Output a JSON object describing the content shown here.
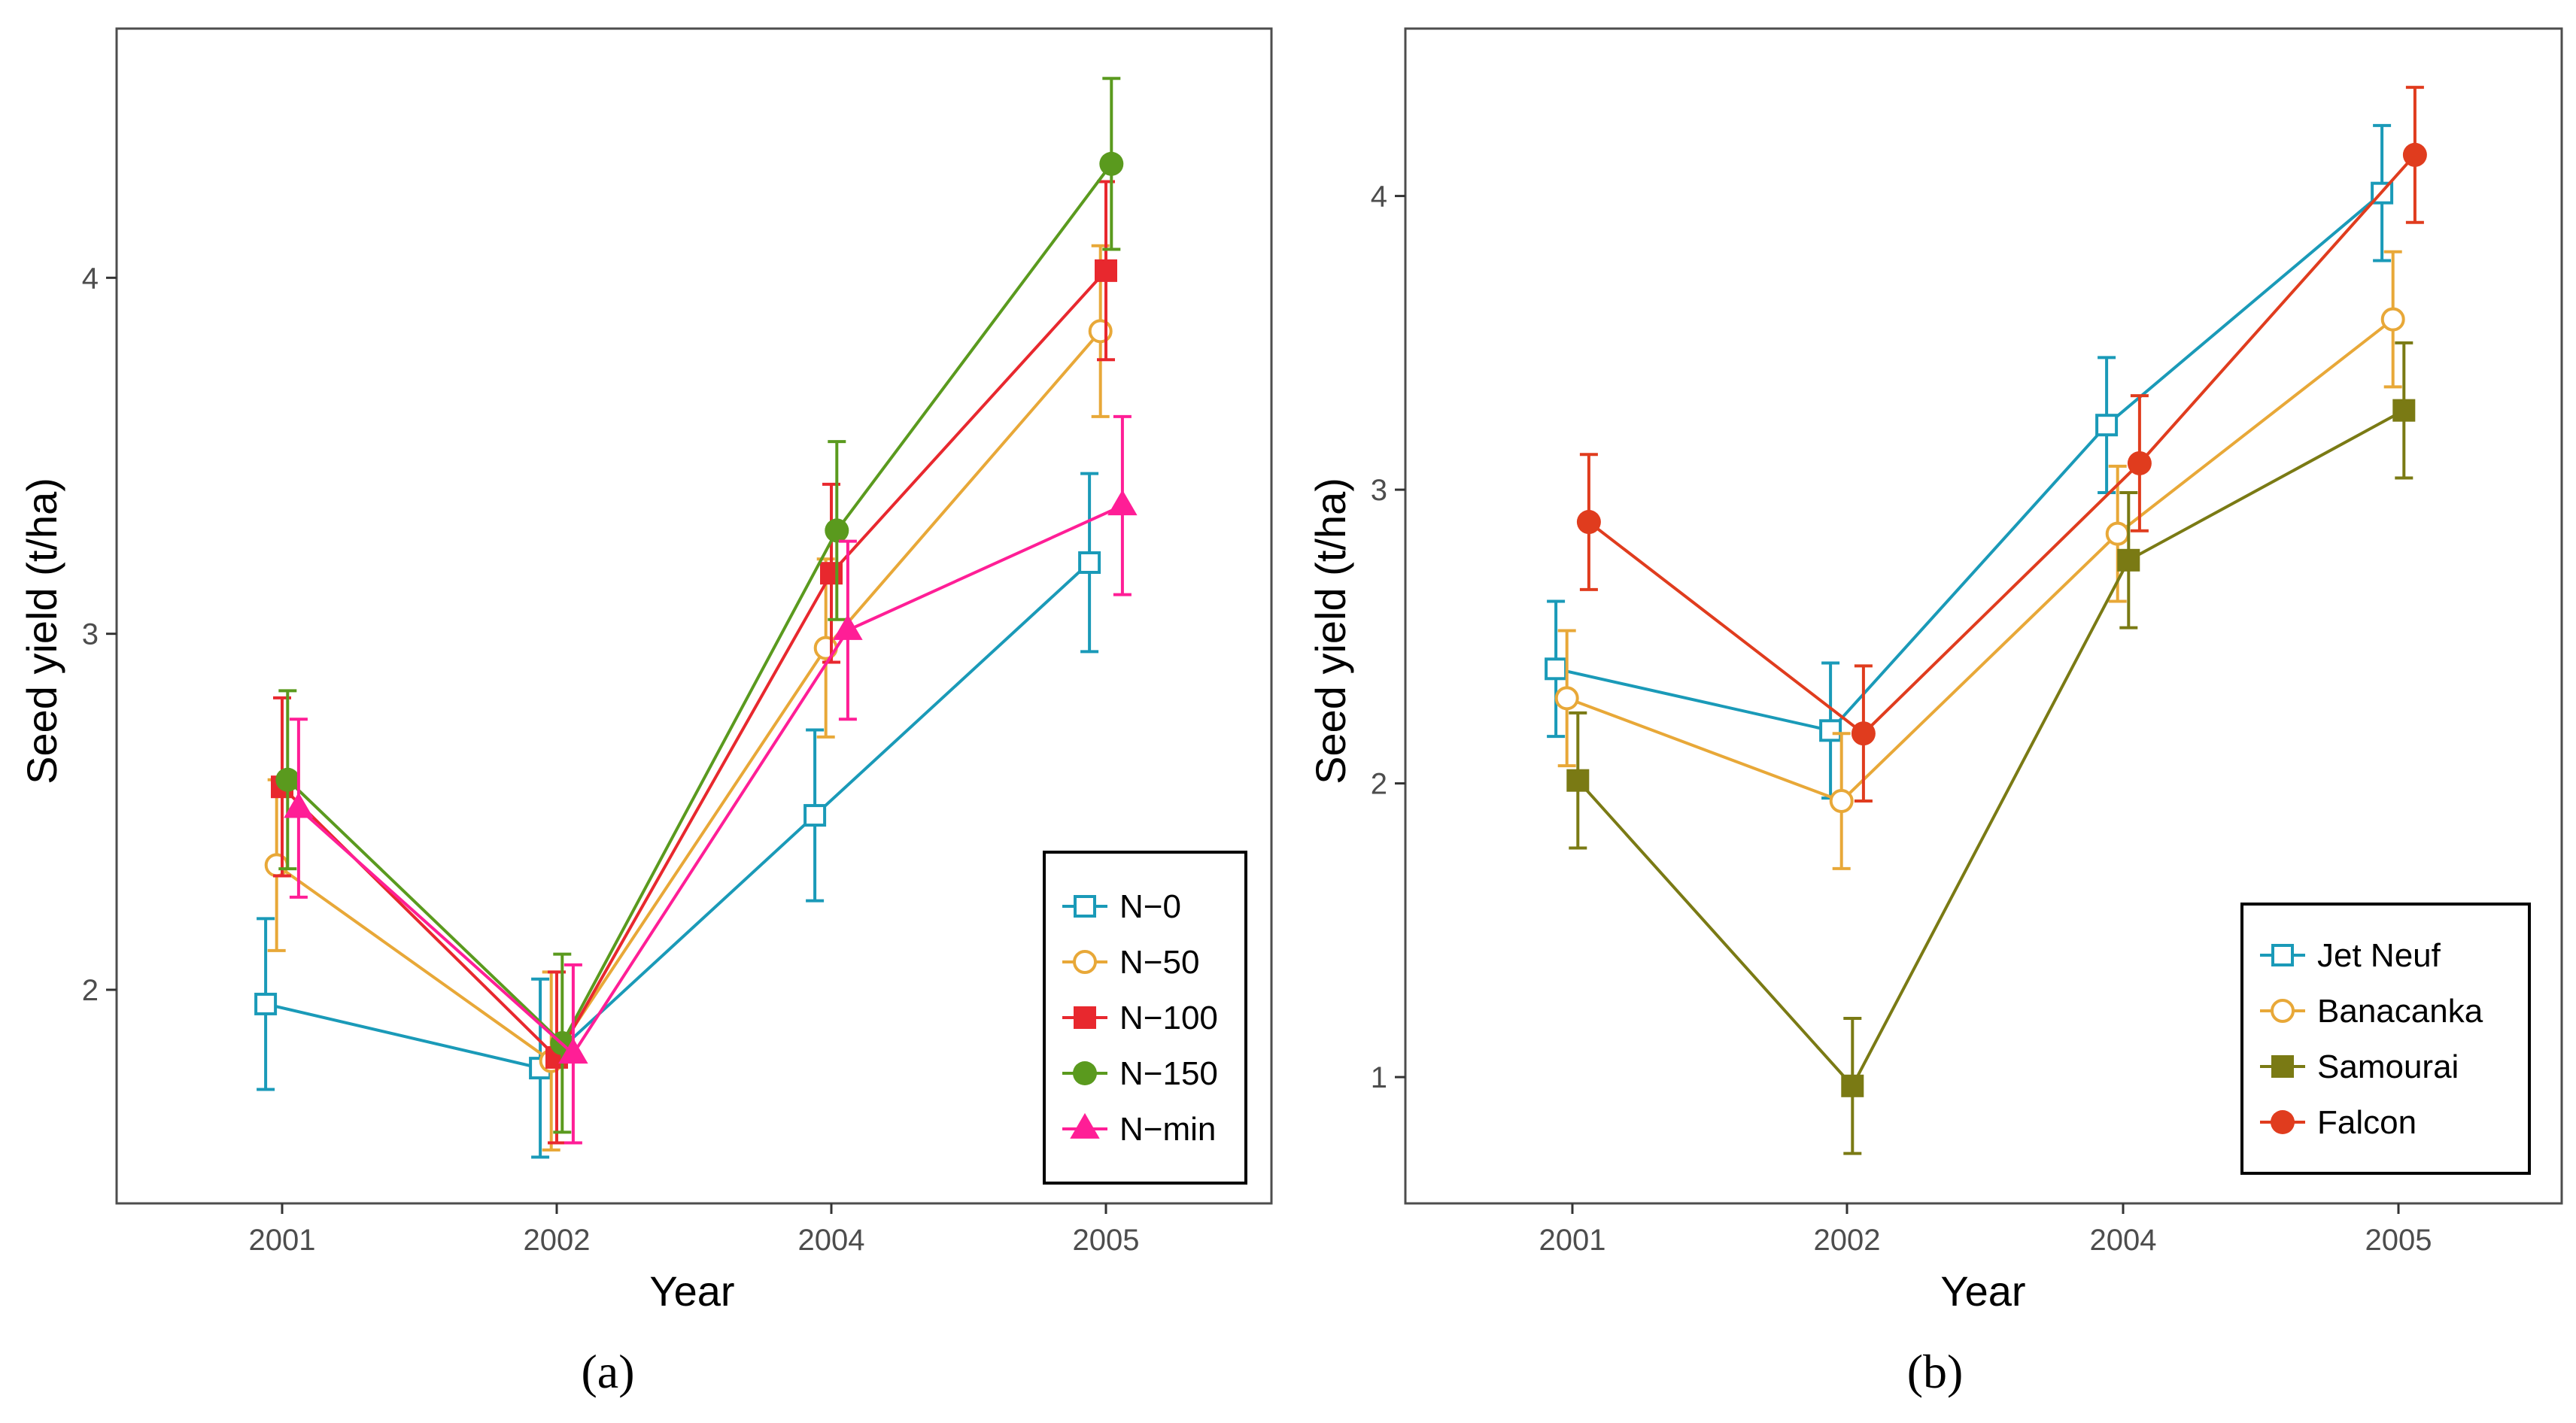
{
  "chart_data": [
    {
      "type": "line",
      "panel_label": "a",
      "xlabel": "Year",
      "ylabel": "Seed yield (t/ha)",
      "categories": [
        "2001",
        "2002",
        "2004",
        "2005"
      ],
      "yticks": [
        "2",
        "3",
        "4"
      ],
      "ylim": [
        1.4,
        4.7
      ],
      "legend_position": "bottom-right",
      "series": [
        {
          "name": "N−0",
          "color": "#1a9ab8",
          "marker": "open-square",
          "offset": -0.06,
          "values": [
            1.96,
            1.78,
            2.49,
            3.2
          ],
          "err": [
            0.24,
            0.25,
            0.24,
            0.25
          ]
        },
        {
          "name": "N−50",
          "color": "#e8a838",
          "marker": "open-circle",
          "offset": -0.02,
          "values": [
            2.35,
            1.8,
            2.96,
            3.85
          ],
          "err": [
            0.24,
            0.25,
            0.25,
            0.24
          ]
        },
        {
          "name": "N−100",
          "color": "#e8282e",
          "marker": "filled-square",
          "offset": 0.0,
          "values": [
            2.57,
            1.81,
            3.17,
            4.02
          ],
          "err": [
            0.25,
            0.24,
            0.25,
            0.25
          ]
        },
        {
          "name": "N−150",
          "color": "#5a9a1e",
          "marker": "filled-circle",
          "offset": 0.02,
          "values": [
            2.59,
            1.85,
            3.29,
            4.32
          ],
          "err": [
            0.25,
            0.25,
            0.25,
            0.24
          ]
        },
        {
          "name": "N−min",
          "color": "#ff1e96",
          "marker": "filled-triangle",
          "offset": 0.06,
          "values": [
            2.51,
            1.82,
            3.01,
            3.36
          ],
          "err": [
            0.25,
            0.25,
            0.25,
            0.25
          ]
        }
      ]
    },
    {
      "type": "line",
      "panel_label": "b",
      "xlabel": "Year",
      "ylabel": "Seed yield (t/ha)",
      "categories": [
        "2001",
        "2002",
        "2004",
        "2005"
      ],
      "yticks": [
        "1",
        "2",
        "3",
        "4"
      ],
      "ylim": [
        0.57,
        4.57
      ],
      "legend_position": "bottom-right",
      "series": [
        {
          "name": "Jet Neuf",
          "color": "#1a9ab8",
          "marker": "open-square",
          "offset": -0.06,
          "values": [
            2.39,
            2.18,
            3.22,
            4.01
          ],
          "err": [
            0.23,
            0.23,
            0.23,
            0.23
          ]
        },
        {
          "name": "Banacanka",
          "color": "#e8a838",
          "marker": "open-circle",
          "offset": -0.02,
          "values": [
            2.29,
            1.94,
            2.85,
            3.58
          ],
          "err": [
            0.23,
            0.23,
            0.23,
            0.23
          ]
        },
        {
          "name": "Samourai",
          "color": "#7a7a14",
          "marker": "filled-square",
          "offset": 0.02,
          "values": [
            2.01,
            0.97,
            2.76,
            3.27
          ],
          "err": [
            0.23,
            0.23,
            0.23,
            0.23
          ]
        },
        {
          "name": "Falcon",
          "color": "#e03c1e",
          "marker": "filled-circle",
          "offset": 0.06,
          "values": [
            2.89,
            2.17,
            3.09,
            4.14
          ],
          "err": [
            0.23,
            0.23,
            0.23,
            0.23
          ]
        }
      ]
    }
  ],
  "captions": {
    "a": "(a)",
    "b": "(b)"
  }
}
